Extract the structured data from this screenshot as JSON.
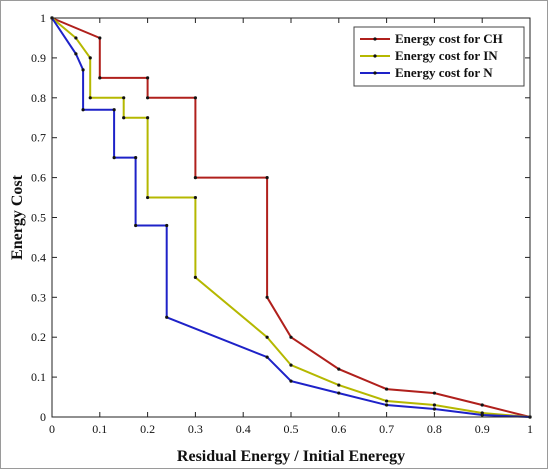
{
  "chart_data": {
    "type": "line",
    "title": "",
    "xlabel": "Residual Energy / Initial Eneregy",
    "ylabel": "Energy Cost",
    "xlim": [
      0,
      1
    ],
    "ylim": [
      0,
      1
    ],
    "xticks": [
      "0",
      "0.1",
      "0.2",
      "0.3",
      "0.4",
      "0.5",
      "0.6",
      "0.7",
      "0.8",
      "0.9",
      "1"
    ],
    "yticks": [
      "0",
      "0.1",
      "0.2",
      "0.3",
      "0.4",
      "0.5",
      "0.6",
      "0.7",
      "0.8",
      "0.9",
      "1"
    ],
    "grid": false,
    "legend_position": "top-right",
    "series": [
      {
        "name": "Energy cost for CH",
        "color": "#b0201c",
        "x": [
          0,
          0.1,
          0.1,
          0.2,
          0.2,
          0.3,
          0.3,
          0.45,
          0.45,
          0.5,
          0.6,
          0.7,
          0.8,
          0.9,
          1.0
        ],
        "y": [
          1.0,
          0.95,
          0.85,
          0.85,
          0.8,
          0.8,
          0.6,
          0.6,
          0.3,
          0.2,
          0.12,
          0.07,
          0.06,
          0.03,
          0.0
        ]
      },
      {
        "name": "Energy cost for IN",
        "color": "#b5b800",
        "x": [
          0,
          0.05,
          0.08,
          0.08,
          0.15,
          0.15,
          0.2,
          0.2,
          0.3,
          0.3,
          0.45,
          0.5,
          0.6,
          0.7,
          0.8,
          0.9,
          1.0
        ],
        "y": [
          1.0,
          0.95,
          0.9,
          0.8,
          0.8,
          0.75,
          0.75,
          0.55,
          0.55,
          0.35,
          0.2,
          0.13,
          0.08,
          0.04,
          0.03,
          0.01,
          0.0
        ]
      },
      {
        "name": "Energy cost for N",
        "color": "#1e22c8",
        "x": [
          0,
          0.05,
          0.065,
          0.065,
          0.13,
          0.13,
          0.175,
          0.175,
          0.24,
          0.24,
          0.45,
          0.5,
          0.6,
          0.7,
          0.8,
          0.9,
          1.0
        ],
        "y": [
          1.0,
          0.91,
          0.87,
          0.77,
          0.77,
          0.65,
          0.65,
          0.48,
          0.48,
          0.25,
          0.15,
          0.09,
          0.06,
          0.03,
          0.02,
          0.005,
          0.0
        ]
      }
    ]
  }
}
